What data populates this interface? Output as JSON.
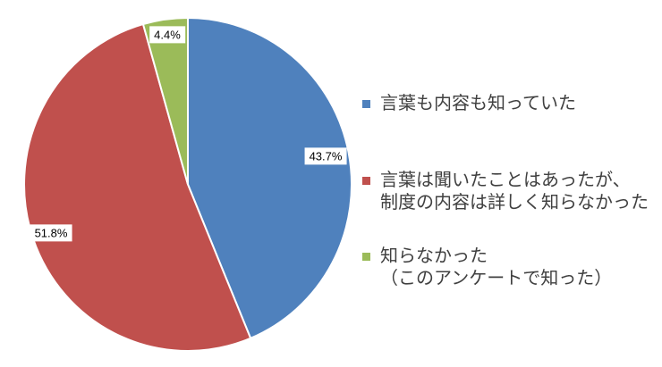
{
  "chart_data": {
    "type": "pie",
    "title": "",
    "legend_position": "right",
    "data_label_format": "percent",
    "background_color": "#ffffff",
    "start_angle_deg": 0,
    "direction": "clockwise",
    "slices": [
      {
        "label": "言葉も内容も知っていた",
        "value": 43.7,
        "value_label": "43.7%",
        "color": "#4F81BD",
        "legend_lines": [
          "言葉も内容も知っていた"
        ]
      },
      {
        "label": "言葉は聞いたことはあったが、制度の内容は詳しく知らなかった",
        "value": 51.8,
        "value_label": "51.8%",
        "color": "#C0504D",
        "legend_lines": [
          "言葉は聞いたことはあったが、",
          "制度の内容は詳しく知らなかった"
        ]
      },
      {
        "label": "知らなかった（このアンケートで知った）",
        "value": 4.4,
        "value_label": "4.4%",
        "color": "#9BBB59",
        "legend_lines": [
          "知らなかった",
          "（このアンケートで知った）"
        ]
      }
    ]
  }
}
